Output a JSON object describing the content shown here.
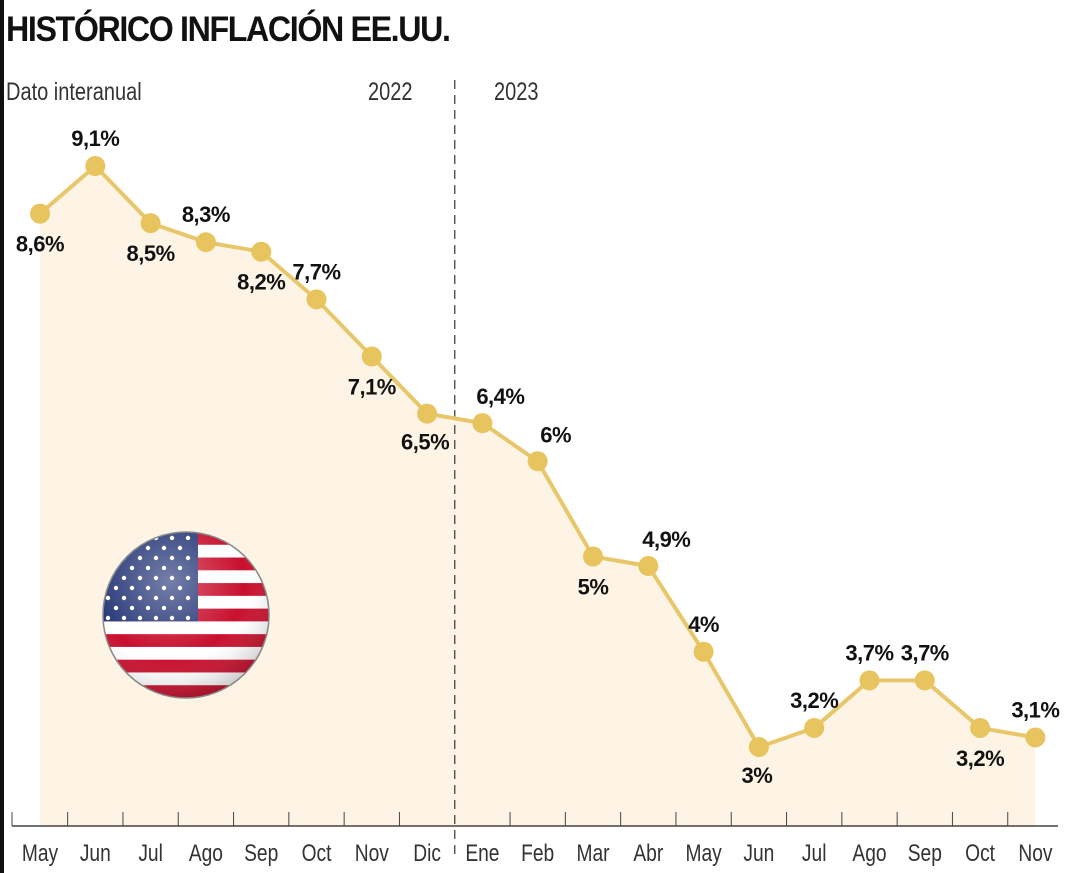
{
  "chart_data": {
    "type": "line",
    "title": "HISTÓRICO INFLACIÓN EE.UU.",
    "subtitle": "Dato interanual",
    "periods": [
      "2022",
      "2023"
    ],
    "categories": [
      "May",
      "Jun",
      "Jul",
      "Ago",
      "Sep",
      "Oct",
      "Nov",
      "Dic",
      "Ene",
      "Feb",
      "Mar",
      "Abr",
      "May",
      "Jun",
      "Jul",
      "Ago",
      "Sep",
      "Oct",
      "Nov"
    ],
    "values": [
      8.6,
      9.1,
      8.5,
      8.3,
      8.2,
      7.7,
      7.1,
      6.5,
      6.4,
      6.0,
      5.0,
      4.9,
      4.0,
      3.0,
      3.2,
      3.7,
      3.7,
      3.2,
      3.1
    ],
    "labels": [
      "8,6%",
      "9,1%",
      "8,5%",
      "8,3%",
      "8,2%",
      "7,7%",
      "7,1%",
      "6,5%",
      "6,4%",
      "6%",
      "5%",
      "4,9%",
      "4%",
      "3%",
      "3,2%",
      "3,7%",
      "3,7%",
      "3,2%",
      "3,1%"
    ],
    "label_placement": [
      "below",
      "above",
      "below",
      "above",
      "below",
      "above",
      "below",
      "below-left",
      "above-right",
      "above-right",
      "below",
      "above-right",
      "above",
      "below-left",
      "above",
      "above",
      "above",
      "below",
      "above"
    ],
    "year_divider_after": "Dic",
    "ylim": [
      3.0,
      9.1
    ],
    "grid": false,
    "xlabel": "",
    "ylabel": "",
    "colors": {
      "line": "#e8c66a",
      "marker": "#e8c45e",
      "fill": "#fdf4e6",
      "axis": "#444"
    }
  }
}
